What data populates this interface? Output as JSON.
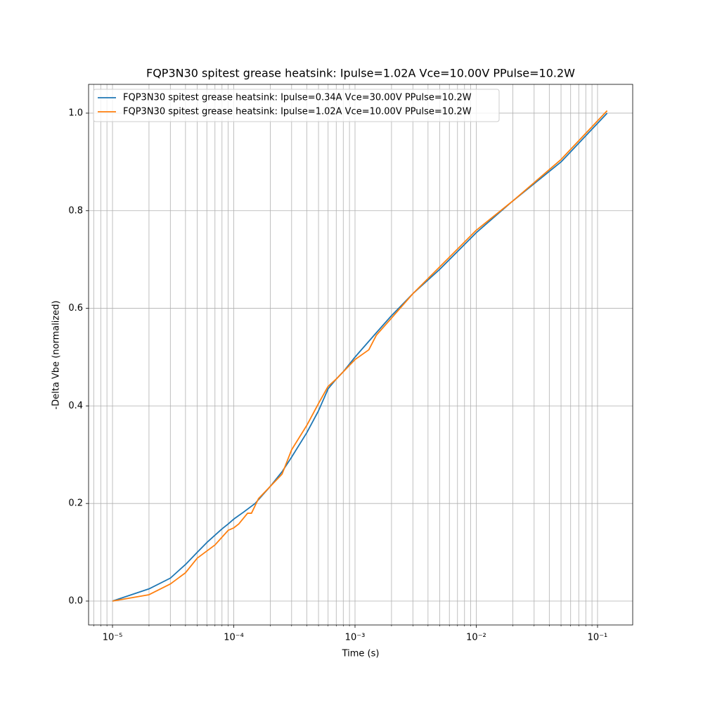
{
  "chart_data": {
    "type": "line",
    "title": "FQP3N30 spitest grease heatsink: Ipulse=1.02A Vce=10.00V PPulse=10.2W",
    "xlabel": "Time (s)",
    "ylabel": "-Delta Vbe (normalized)",
    "xscale": "log",
    "grid": true,
    "legend": "upper left",
    "xlim": [
      6.35e-06,
      0.195
    ],
    "ylim": [
      -0.049,
      1.059
    ],
    "xticks": [
      {
        "value": 1e-05,
        "label": "10⁻⁵"
      },
      {
        "value": 0.0001,
        "label": "10⁻⁴"
      },
      {
        "value": 0.001,
        "label": "10⁻³"
      },
      {
        "value": 0.01,
        "label": "10⁻²"
      },
      {
        "value": 0.1,
        "label": "10⁻¹"
      }
    ],
    "xminorticks": [
      7e-06,
      8e-06,
      9e-06,
      2e-05,
      3e-05,
      4e-05,
      5e-05,
      6e-05,
      7e-05,
      8e-05,
      9e-05,
      0.0002,
      0.0003,
      0.0004,
      0.0005,
      0.0006,
      0.0007,
      0.0008,
      0.0009,
      0.002,
      0.003,
      0.004,
      0.005,
      0.006,
      0.007,
      0.008,
      0.009,
      0.02,
      0.03,
      0.04,
      0.05,
      0.06,
      0.07,
      0.08,
      0.09
    ],
    "yticks": [
      {
        "value": 0,
        "label": "0.0"
      },
      0.2,
      0.4,
      0.6,
      0.8,
      {
        "value": 1,
        "label": "1.0"
      }
    ],
    "series": [
      {
        "name": "FQP3N30 spitest grease heatsink: Ipulse=0.34A Vce=30.00V PPulse=10.2W",
        "color": "#1f77b4",
        "x": [
          1e-05,
          2e-05,
          3e-05,
          4e-05,
          5e-05,
          6e-05,
          7e-05,
          8e-05,
          9e-05,
          0.0001,
          0.00012,
          0.00015,
          0.0002,
          0.00025,
          0.0003,
          0.0004,
          0.0005,
          0.0006,
          0.0007,
          0.0008,
          0.001,
          0.0015,
          0.002,
          0.003,
          0.005,
          0.01,
          0.02,
          0.05,
          0.12
        ],
        "values": [
          0,
          0.025,
          0.047,
          0.075,
          0.1,
          0.12,
          0.135,
          0.148,
          0.158,
          0.168,
          0.182,
          0.2,
          0.235,
          0.265,
          0.295,
          0.345,
          0.39,
          0.435,
          0.455,
          0.47,
          0.5,
          0.55,
          0.585,
          0.63,
          0.68,
          0.755,
          0.82,
          0.9,
          1.0
        ]
      },
      {
        "name": "FQP3N30 spitest grease heatsink: Ipulse=1.02A Vce=10.00V PPulse=10.2W",
        "color": "#ff7f0e",
        "x": [
          1e-05,
          2e-05,
          3e-05,
          4e-05,
          5e-05,
          7e-05,
          9e-05,
          0.0001,
          0.00011,
          0.00013,
          0.00014,
          0.00016,
          0.0002,
          0.00025,
          0.0003,
          0.0004,
          0.0005,
          0.0006,
          0.0007,
          0.001,
          0.0013,
          0.0015,
          0.002,
          0.003,
          0.005,
          0.01,
          0.02,
          0.05,
          0.12
        ],
        "values": [
          0,
          0.013,
          0.035,
          0.058,
          0.088,
          0.115,
          0.145,
          0.15,
          0.158,
          0.18,
          0.18,
          0.21,
          0.235,
          0.26,
          0.31,
          0.36,
          0.405,
          0.44,
          0.455,
          0.495,
          0.515,
          0.545,
          0.58,
          0.63,
          0.685,
          0.76,
          0.82,
          0.905,
          1.005
        ]
      }
    ]
  }
}
